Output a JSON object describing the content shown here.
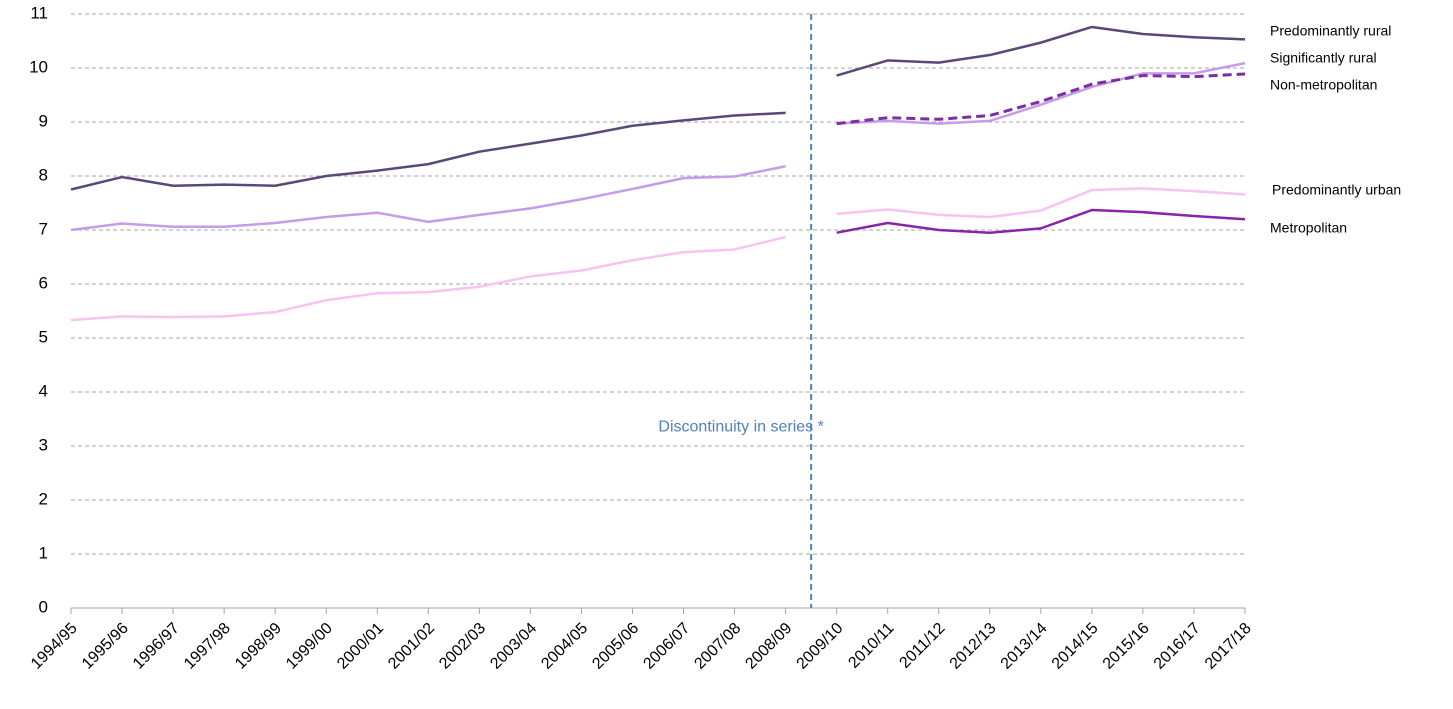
{
  "chart_data": {
    "type": "line",
    "categories": [
      "1994/95",
      "1995/96",
      "1996/97",
      "1997/98",
      "1998/99",
      "1999/00",
      "2000/01",
      "2001/02",
      "2002/03",
      "2003/04",
      "2004/05",
      "2005/06",
      "2006/07",
      "2007/08",
      "2008/09",
      "2009/10",
      "2010/11",
      "2011/12",
      "2012/13",
      "2013/14",
      "2014/15",
      "2015/16",
      "2016/17",
      "2017/18"
    ],
    "series": [
      {
        "name": "Predominantly rural",
        "color": "#5b4778",
        "dashed": false,
        "values": [
          7.75,
          7.98,
          7.82,
          7.84,
          7.82,
          8.0,
          8.1,
          8.22,
          8.45,
          8.6,
          8.75,
          8.93,
          9.03,
          9.12,
          9.17,
          9.86,
          10.14,
          10.1,
          10.24,
          10.47,
          10.76,
          10.63,
          10.57,
          10.53
        ]
      },
      {
        "name": "Significantly rural",
        "color": "#c49ce9",
        "dashed": false,
        "values": [
          7.0,
          7.12,
          7.06,
          7.06,
          7.13,
          7.24,
          7.32,
          7.15,
          7.28,
          7.4,
          7.57,
          7.76,
          7.96,
          7.99,
          8.18,
          8.97,
          9.02,
          8.97,
          9.02,
          9.32,
          9.65,
          9.9,
          9.9,
          10.09
        ]
      },
      {
        "name": "Non-metropolitan",
        "color": "#7b2fa0",
        "dashed": true,
        "values": [
          null,
          null,
          null,
          null,
          null,
          null,
          null,
          null,
          null,
          null,
          null,
          null,
          null,
          null,
          null,
          8.97,
          9.08,
          9.05,
          9.12,
          9.38,
          9.7,
          9.86,
          9.84,
          9.89
        ]
      },
      {
        "name": "Predominantly urban",
        "color": "#f6c3f2",
        "dashed": false,
        "values": [
          5.33,
          5.4,
          5.39,
          5.4,
          5.48,
          5.7,
          5.83,
          5.85,
          5.95,
          6.14,
          6.25,
          6.44,
          6.59,
          6.64,
          6.87,
          7.3,
          7.38,
          7.28,
          7.24,
          7.36,
          7.74,
          7.77,
          7.72,
          7.66
        ]
      },
      {
        "name": "Metropolitan",
        "color": "#8a23a7",
        "dashed": false,
        "values": [
          null,
          null,
          null,
          null,
          null,
          null,
          null,
          null,
          null,
          null,
          null,
          null,
          null,
          null,
          null,
          6.95,
          7.13,
          7.0,
          6.95,
          7.03,
          7.37,
          7.33,
          7.26,
          7.2
        ]
      }
    ],
    "discontinuity": {
      "label": "Discontinuity in series *",
      "after": "2008/09",
      "color": "#4f81bd"
    },
    "ylim": [
      0,
      11
    ],
    "yticks": [
      0,
      1,
      2,
      3,
      4,
      5,
      6,
      7,
      8,
      9,
      10,
      11
    ],
    "grid": true
  }
}
